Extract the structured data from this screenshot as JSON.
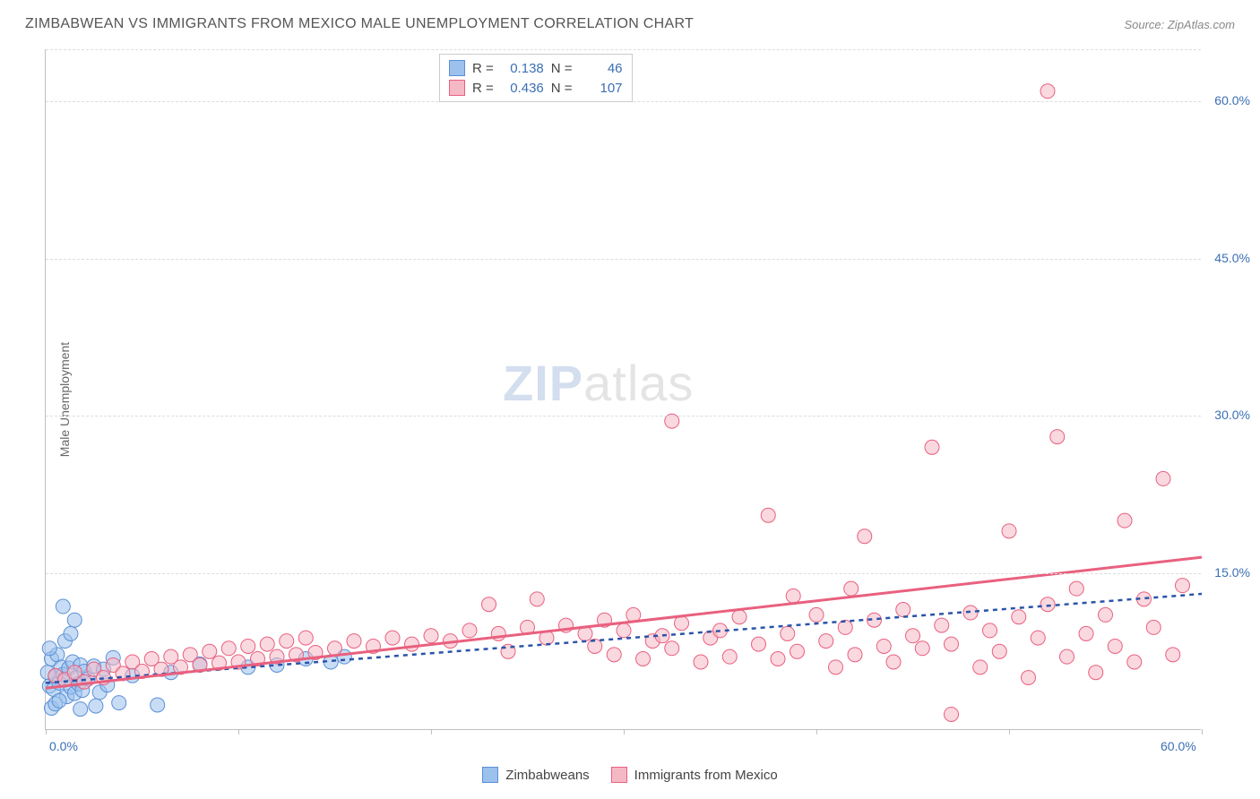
{
  "title": "ZIMBABWEAN VS IMMIGRANTS FROM MEXICO MALE UNEMPLOYMENT CORRELATION CHART",
  "source_label": "Source: ZipAtlas.com",
  "y_axis_label": "Male Unemployment",
  "watermark_zip": "ZIP",
  "watermark_atlas": "atlas",
  "chart": {
    "type": "scatter",
    "background_color": "#ffffff",
    "grid_color": "#dddddd",
    "axis_color": "#c0c0c0",
    "tick_label_color": "#3b6fb5",
    "tick_fontsize": 14,
    "title_fontsize": 16,
    "xlim": [
      0,
      60
    ],
    "ylim": [
      0,
      65
    ],
    "x_ticks": [
      0,
      10,
      20,
      30,
      40,
      50,
      60
    ],
    "x_tick_labels": {
      "0": "0.0%",
      "60": "60.0%"
    },
    "y_ticks": [
      15,
      30,
      45,
      60
    ],
    "y_tick_labels": {
      "15": "15.0%",
      "30": "30.0%",
      "45": "45.0%",
      "60": "60.0%"
    },
    "marker_radius": 8,
    "marker_opacity": 0.55,
    "series": [
      {
        "key": "zimbabweans",
        "label": "Zimbabweans",
        "fill_color": "#9bc1ec",
        "stroke_color": "#5b8fd6",
        "R": "0.138",
        "N": "46",
        "trend": {
          "x1": 0,
          "y1": 4.5,
          "x2": 60,
          "y2": 13.0,
          "color": "#2a54a8",
          "width": 2.5,
          "dash": "5,5"
        },
        "points": [
          [
            0.1,
            5.5
          ],
          [
            0.2,
            4.2
          ],
          [
            0.3,
            6.8
          ],
          [
            0.4,
            3.9
          ],
          [
            0.5,
            5.1
          ],
          [
            0.6,
            7.2
          ],
          [
            0.7,
            4.5
          ],
          [
            0.8,
            6.0
          ],
          [
            0.9,
            5.3
          ],
          [
            1.0,
            4.8
          ],
          [
            1.1,
            3.2
          ],
          [
            1.2,
            5.9
          ],
          [
            1.3,
            4.1
          ],
          [
            1.4,
            6.5
          ],
          [
            1.5,
            3.5
          ],
          [
            1.6,
            5.0
          ],
          [
            1.7,
            4.4
          ],
          [
            1.8,
            6.2
          ],
          [
            1.9,
            3.8
          ],
          [
            2.0,
            5.6
          ],
          [
            2.2,
            4.9
          ],
          [
            2.5,
            6.1
          ],
          [
            2.8,
            3.6
          ],
          [
            3.0,
            5.8
          ],
          [
            3.2,
            4.3
          ],
          [
            3.5,
            6.9
          ],
          [
            0.3,
            2.1
          ],
          [
            0.5,
            2.5
          ],
          [
            0.7,
            2.8
          ],
          [
            0.9,
            11.8
          ],
          [
            1.8,
            2.0
          ],
          [
            2.6,
            2.3
          ],
          [
            3.8,
            2.6
          ],
          [
            4.5,
            5.2
          ],
          [
            1.0,
            8.5
          ],
          [
            1.3,
            9.2
          ],
          [
            1.5,
            10.5
          ],
          [
            0.2,
            7.8
          ],
          [
            5.8,
            2.4
          ],
          [
            6.5,
            5.5
          ],
          [
            8.0,
            6.3
          ],
          [
            10.5,
            6.0
          ],
          [
            12.0,
            6.2
          ],
          [
            13.5,
            6.8
          ],
          [
            14.8,
            6.5
          ],
          [
            15.5,
            7.0
          ]
        ]
      },
      {
        "key": "mexico",
        "label": "Immigrants from Mexico",
        "fill_color": "#f5b8c5",
        "stroke_color": "#e9607f",
        "R": "0.436",
        "N": "107",
        "trend": {
          "x1": 0,
          "y1": 4.0,
          "x2": 60,
          "y2": 16.5,
          "color": "#e9607f",
          "width": 3,
          "dash": null
        },
        "points": [
          [
            0.5,
            5.2
          ],
          [
            1.0,
            4.8
          ],
          [
            1.5,
            5.5
          ],
          [
            2.0,
            4.6
          ],
          [
            2.5,
            5.8
          ],
          [
            3.0,
            5.0
          ],
          [
            3.5,
            6.2
          ],
          [
            4.0,
            5.4
          ],
          [
            4.5,
            6.5
          ],
          [
            5.0,
            5.6
          ],
          [
            5.5,
            6.8
          ],
          [
            6.0,
            5.8
          ],
          [
            6.5,
            7.0
          ],
          [
            7.0,
            6.0
          ],
          [
            7.5,
            7.2
          ],
          [
            8.0,
            6.2
          ],
          [
            8.5,
            7.5
          ],
          [
            9.0,
            6.4
          ],
          [
            9.5,
            7.8
          ],
          [
            10.0,
            6.5
          ],
          [
            10.5,
            8.0
          ],
          [
            11.0,
            6.8
          ],
          [
            11.5,
            8.2
          ],
          [
            12.0,
            7.0
          ],
          [
            12.5,
            8.5
          ],
          [
            13.0,
            7.2
          ],
          [
            13.5,
            8.8
          ],
          [
            14.0,
            7.4
          ],
          [
            15.0,
            7.8
          ],
          [
            16.0,
            8.5
          ],
          [
            17.0,
            8.0
          ],
          [
            18.0,
            8.8
          ],
          [
            19.0,
            8.2
          ],
          [
            20.0,
            9.0
          ],
          [
            21.0,
            8.5
          ],
          [
            22.0,
            9.5
          ],
          [
            23.0,
            12.0
          ],
          [
            23.5,
            9.2
          ],
          [
            24.0,
            7.5
          ],
          [
            25.0,
            9.8
          ],
          [
            25.5,
            12.5
          ],
          [
            26.0,
            8.8
          ],
          [
            27.0,
            10.0
          ],
          [
            28.0,
            9.2
          ],
          [
            28.5,
            8.0
          ],
          [
            29.0,
            10.5
          ],
          [
            29.5,
            7.2
          ],
          [
            30.0,
            9.5
          ],
          [
            30.5,
            11.0
          ],
          [
            31.0,
            6.8
          ],
          [
            31.5,
            8.5
          ],
          [
            32.0,
            9.0
          ],
          [
            32.5,
            7.8
          ],
          [
            33.0,
            10.2
          ],
          [
            34.0,
            6.5
          ],
          [
            34.5,
            8.8
          ],
          [
            32.5,
            29.5
          ],
          [
            35.0,
            9.5
          ],
          [
            35.5,
            7.0
          ],
          [
            36.0,
            10.8
          ],
          [
            37.0,
            8.2
          ],
          [
            37.5,
            20.5
          ],
          [
            38.0,
            6.8
          ],
          [
            38.5,
            9.2
          ],
          [
            38.8,
            12.8
          ],
          [
            39.0,
            7.5
          ],
          [
            40.0,
            11.0
          ],
          [
            40.5,
            8.5
          ],
          [
            41.0,
            6.0
          ],
          [
            41.5,
            9.8
          ],
          [
            41.8,
            13.5
          ],
          [
            42.0,
            7.2
          ],
          [
            42.5,
            18.5
          ],
          [
            43.0,
            10.5
          ],
          [
            43.5,
            8.0
          ],
          [
            44.0,
            6.5
          ],
          [
            44.5,
            11.5
          ],
          [
            45.0,
            9.0
          ],
          [
            45.5,
            7.8
          ],
          [
            46.0,
            27.0
          ],
          [
            46.5,
            10.0
          ],
          [
            47.0,
            8.2
          ],
          [
            48.0,
            11.2
          ],
          [
            48.5,
            6.0
          ],
          [
            49.0,
            9.5
          ],
          [
            49.5,
            7.5
          ],
          [
            50.0,
            19.0
          ],
          [
            50.5,
            10.8
          ],
          [
            51.0,
            5.0
          ],
          [
            51.5,
            8.8
          ],
          [
            52.0,
            12.0
          ],
          [
            52.5,
            28.0
          ],
          [
            53.0,
            7.0
          ],
          [
            53.5,
            13.5
          ],
          [
            54.0,
            9.2
          ],
          [
            54.5,
            5.5
          ],
          [
            52.0,
            61.0
          ],
          [
            55.0,
            11.0
          ],
          [
            55.5,
            8.0
          ],
          [
            56.0,
            20.0
          ],
          [
            56.5,
            6.5
          ],
          [
            57.0,
            12.5
          ],
          [
            57.5,
            9.8
          ],
          [
            58.0,
            24.0
          ],
          [
            58.5,
            7.2
          ],
          [
            59.0,
            13.8
          ],
          [
            47.0,
            1.5
          ]
        ]
      }
    ]
  },
  "legend_top": {
    "R_label": "R =",
    "N_label": "N ="
  },
  "legend_bottom_labels": {
    "zimbabweans": "Zimbabweans",
    "mexico": "Immigrants from Mexico"
  }
}
